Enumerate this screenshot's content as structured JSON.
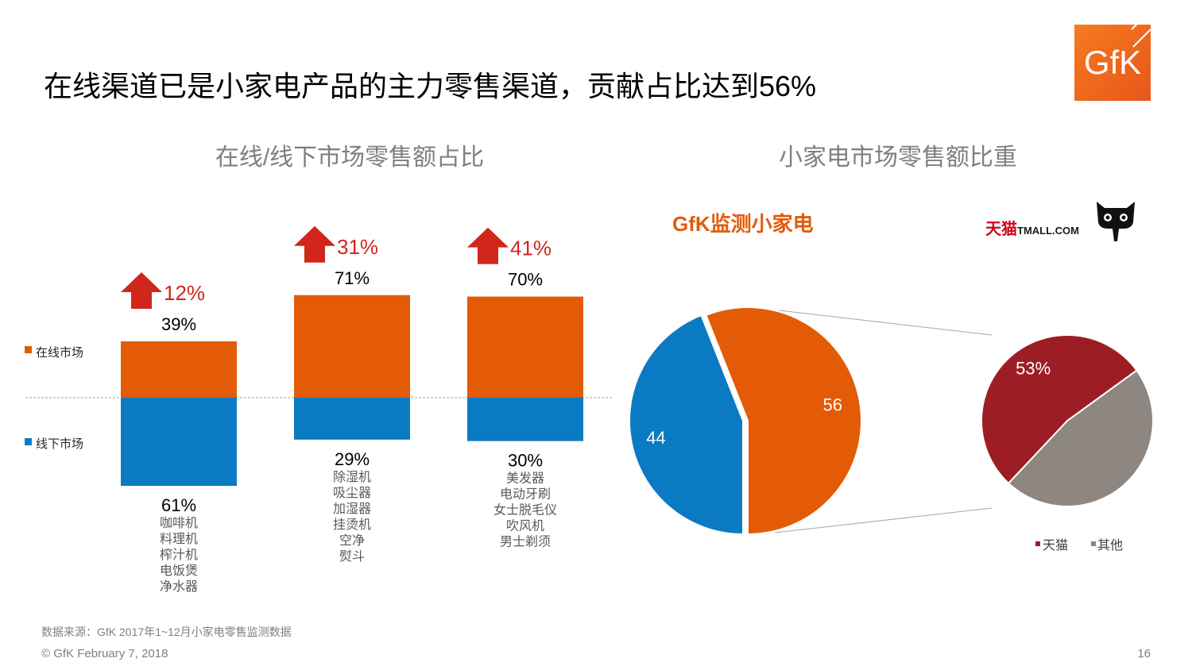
{
  "slide": {
    "title": "在线渠道已是小家电产品的主力零售渠道，贡献占比达到56%",
    "page_number": "16",
    "footer": "© GfK February 7, 2018",
    "source": "数据来源：GfK 2017年1~12月小家电零售监测数据",
    "logo_text": "GfK"
  },
  "left_panel": {
    "title": "在线/线下市场零售额占比",
    "legend": [
      "在线市场",
      "线下市场"
    ]
  },
  "right_panel": {
    "title": "小家电市场零售额比重",
    "subtitle": "GfK监测小家电",
    "tmall_logo_text": "天猫",
    "tmall_logo_latin": "TMALL.COM",
    "legend": [
      "天猫",
      "其他"
    ]
  },
  "colors": {
    "online": "#e35b07",
    "offline": "#0a7bc2",
    "tmall": "#9c1e24",
    "other": "#8e8680",
    "arrow": "#d0261c",
    "growth_text": "#d0261c"
  },
  "chart_data": [
    {
      "type": "bar",
      "stacked": true,
      "series": [
        {
          "name": "在线市场",
          "values": [
            39,
            71,
            70
          ]
        },
        {
          "name": "线下市场",
          "values": [
            61,
            29,
            30
          ]
        }
      ],
      "value_labels": {
        "online": [
          "39%",
          "71%",
          "70%"
        ],
        "offline": [
          "61%",
          "29%",
          "30%"
        ]
      },
      "growth_labels": [
        "12%",
        "31%",
        "41%"
      ],
      "group_items": [
        [
          "咖啡机",
          "料理机",
          "榨汁机",
          "电饭煲",
          "净水器"
        ],
        [
          "除湿机",
          "吸尘器",
          "加湿器",
          "挂烫机",
          "空净",
          "熨斗"
        ],
        [
          "美发器",
          "电动牙刷",
          "女士脱毛仪",
          "吹风机",
          "男士剃须"
        ]
      ],
      "legend_position": "left"
    },
    {
      "type": "pie",
      "labels": [
        "",
        ""
      ],
      "values": [
        56,
        44
      ],
      "value_labels": [
        "56",
        "44"
      ]
    },
    {
      "type": "pie",
      "labels": [
        "天猫",
        "其他"
      ],
      "values": [
        53,
        47
      ],
      "value_labels": [
        "53%",
        ""
      ],
      "legend_position": "bottom"
    }
  ]
}
